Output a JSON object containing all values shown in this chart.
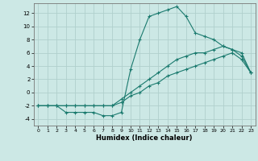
{
  "title": "",
  "xlabel": "Humidex (Indice chaleur)",
  "background_color": "#cce8e5",
  "grid_color": "#b0d0cc",
  "line_color": "#1a7a6e",
  "ylim": [
    -5,
    13.5
  ],
  "xlim": [
    -0.5,
    23.5
  ],
  "yticks": [
    -4,
    -2,
    0,
    2,
    4,
    6,
    8,
    10,
    12
  ],
  "xticks": [
    0,
    1,
    2,
    3,
    4,
    5,
    6,
    7,
    8,
    9,
    10,
    11,
    12,
    13,
    14,
    15,
    16,
    17,
    18,
    19,
    20,
    21,
    22,
    23
  ],
  "curve1_x": [
    0,
    1,
    2,
    3,
    4,
    5,
    6,
    7,
    8,
    9,
    10,
    11,
    12,
    13,
    14,
    15,
    16,
    17,
    18,
    19,
    20,
    21,
    22,
    23
  ],
  "curve1_y": [
    -2,
    -2,
    -2,
    -2,
    -2,
    -2,
    -2,
    -2,
    -2,
    -1.5,
    -0.5,
    0,
    1,
    1.5,
    2.5,
    3,
    3.5,
    4,
    4.5,
    5,
    5.5,
    6,
    5,
    3
  ],
  "curve2_x": [
    0,
    1,
    2,
    3,
    4,
    5,
    6,
    7,
    8,
    9,
    10,
    11,
    12,
    13,
    14,
    15,
    16,
    17,
    18,
    19,
    20,
    21,
    22,
    23
  ],
  "curve2_y": [
    -2,
    -2,
    -2,
    -3,
    -3,
    -3,
    -3,
    -3.5,
    -3.5,
    -3,
    3.5,
    8,
    11.5,
    12,
    12.5,
    13,
    11.5,
    9,
    8.5,
    8,
    7,
    6.5,
    6,
    3
  ],
  "curve3_x": [
    0,
    1,
    2,
    3,
    4,
    5,
    6,
    7,
    8,
    9,
    10,
    11,
    12,
    13,
    14,
    15,
    16,
    17,
    18,
    19,
    20,
    21,
    22,
    23
  ],
  "curve3_y": [
    -2,
    -2,
    -2,
    -2,
    -2,
    -2,
    -2,
    -2,
    -2,
    -1,
    0,
    1,
    2,
    3,
    4,
    5,
    5.5,
    6,
    6,
    6.5,
    7,
    6.5,
    5.5,
    3
  ]
}
